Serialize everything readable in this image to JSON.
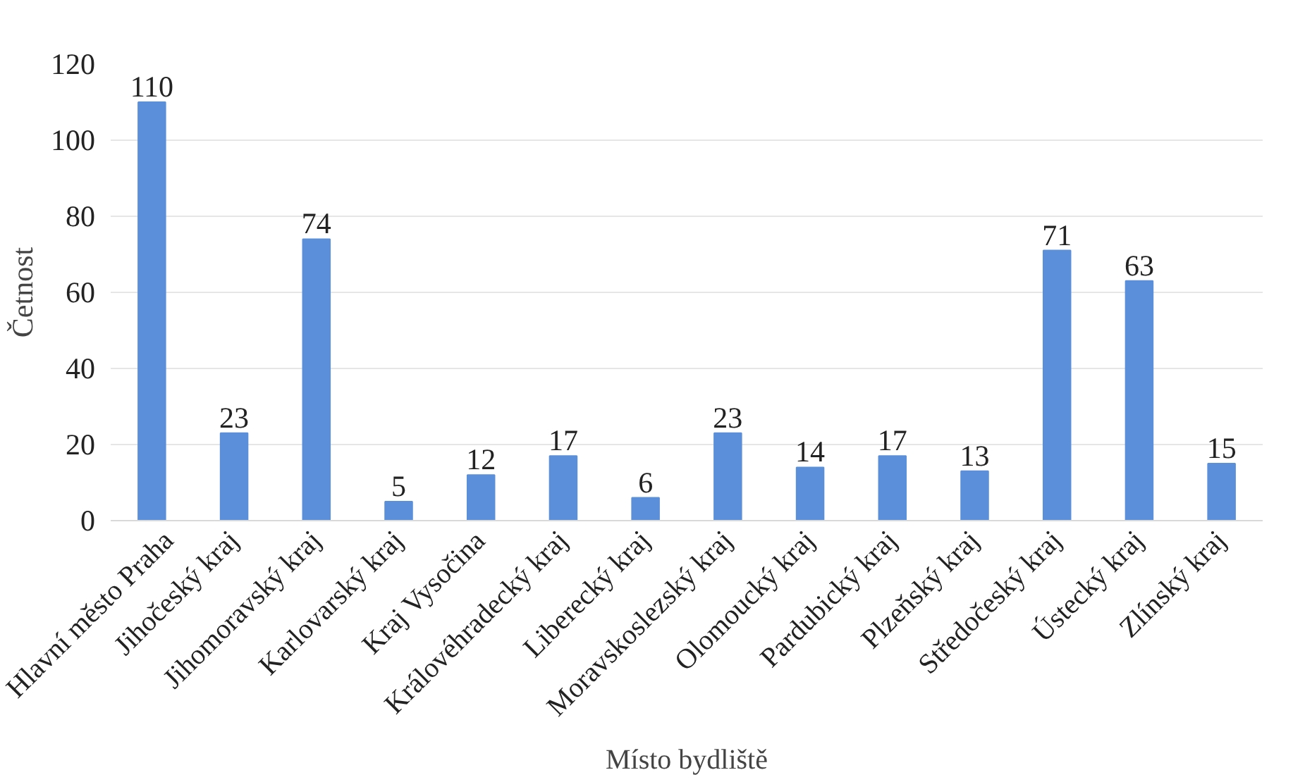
{
  "chart_data": {
    "type": "bar",
    "xlabel": "Místo bydliště",
    "ylabel": "Četnost",
    "categories": [
      "Hlavní město Praha",
      "Jihočeský kraj",
      "Jihomoravský kraj",
      "Karlovarský kraj",
      "Kraj Vysočina",
      "Královéhradecký kraj",
      "Liberecký kraj",
      "Moravskoslezský kraj",
      "Olomoucký kraj",
      "Pardubický kraj",
      "Plzeňský kraj",
      "Středočeský kraj",
      "Ústecký kraj",
      "Zlínský kraj"
    ],
    "values": [
      110,
      23,
      74,
      5,
      12,
      17,
      6,
      23,
      14,
      17,
      13,
      71,
      63,
      15
    ],
    "color": "#5b8fd9",
    "ylim": [
      0,
      120
    ],
    "yticks": [
      0,
      20,
      40,
      60,
      80,
      100,
      120
    ],
    "grid": "y",
    "data_labels": true
  }
}
